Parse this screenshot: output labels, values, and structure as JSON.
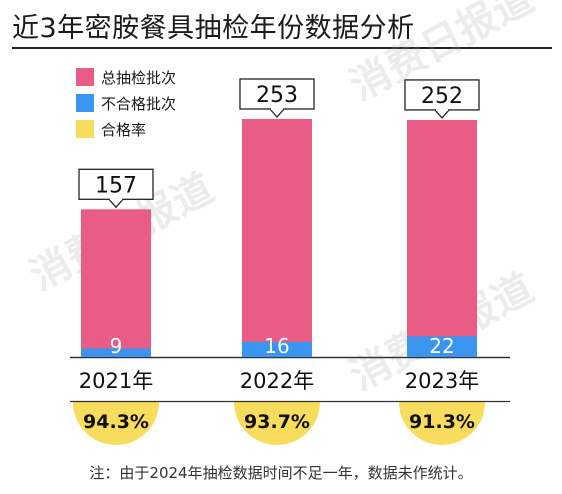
{
  "title": "近3年密胺餐具抽检年份数据分析",
  "watermark": "消费日报道",
  "legend": [
    {
      "label": "总抽检批次",
      "color": "#e85c86"
    },
    {
      "label": "不合格批次",
      "color": "#3a95ee"
    },
    {
      "label": "合格率",
      "color": "#f8dc5d"
    }
  ],
  "note": "注：由于2024年抽检数据时间不足一年，数据未作统计。",
  "chart_data": {
    "type": "bar",
    "categories": [
      "2021年",
      "2022年",
      "2023年"
    ],
    "series": [
      {
        "name": "总抽检批次",
        "values": [
          157,
          253,
          252
        ]
      },
      {
        "name": "不合格批次",
        "values": [
          9,
          16,
          22
        ]
      },
      {
        "name": "合格率",
        "values": [
          "94.3%",
          "93.7%",
          "91.3%"
        ]
      }
    ],
    "total_labels": [
      "157",
      "253",
      "252"
    ],
    "unqualified_labels": [
      "9",
      "16",
      "22"
    ],
    "rate_labels": [
      "94.3%",
      "93.7%",
      "91.3%"
    ],
    "ylim": [
      0,
      253
    ]
  }
}
